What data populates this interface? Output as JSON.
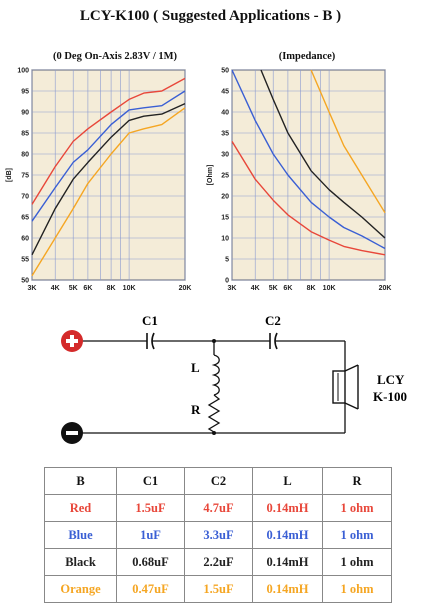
{
  "title": "LCY-K100 ( Suggested Applications - B )",
  "colors": {
    "red": "#e8473a",
    "blue": "#3a5fd4",
    "black": "#222222",
    "orange": "#f5a623",
    "grid_bg": "#f4ecd8",
    "grid_line": "#8a9ad0"
  },
  "chart_data": [
    {
      "type": "line",
      "title": "(0 Deg On-Axis 2.83V / 1M)",
      "xlabel": "",
      "ylabel": "[dB]",
      "xscale": "log",
      "xlim": [
        3000,
        20000
      ],
      "ylim": [
        50,
        100
      ],
      "x_ticks": [
        3000,
        4000,
        5000,
        6000,
        8000,
        10000,
        20000
      ],
      "x_tick_labels": [
        "3K",
        "4K",
        "5K",
        "6K",
        "8K",
        "10K",
        "20K"
      ],
      "y_ticks": [
        50,
        55,
        60,
        65,
        70,
        75,
        80,
        85,
        90,
        95,
        100
      ],
      "grid": true,
      "series": [
        {
          "color": "red",
          "x": [
            3000,
            4000,
            5000,
            6000,
            8000,
            10000,
            12000,
            15000,
            20000
          ],
          "y": [
            68,
            77,
            83,
            86,
            90,
            93,
            94.5,
            95,
            98
          ]
        },
        {
          "color": "blue",
          "x": [
            3000,
            4000,
            5000,
            6000,
            8000,
            10000,
            12000,
            15000,
            20000
          ],
          "y": [
            64,
            72,
            78,
            81,
            87,
            90.5,
            91,
            91.5,
            95
          ]
        },
        {
          "color": "black",
          "x": [
            3000,
            4000,
            5000,
            6000,
            8000,
            10000,
            12000,
            15000,
            20000
          ],
          "y": [
            56,
            67,
            74,
            78,
            84,
            88,
            89,
            89.5,
            92
          ]
        },
        {
          "color": "orange",
          "x": [
            3000,
            4000,
            5000,
            6000,
            8000,
            10000,
            12000,
            15000,
            20000
          ],
          "y": [
            51,
            60,
            67,
            73,
            80,
            85,
            86,
            87,
            91
          ]
        }
      ]
    },
    {
      "type": "line",
      "title": "(Impedance)",
      "xlabel": "",
      "ylabel": "[Ohm]",
      "xscale": "log",
      "xlim": [
        3000,
        20000
      ],
      "ylim": [
        0,
        50
      ],
      "x_ticks": [
        3000,
        4000,
        5000,
        6000,
        8000,
        10000,
        20000
      ],
      "x_tick_labels": [
        "3K",
        "4K",
        "5K",
        "6K",
        "8K",
        "10K",
        "20K"
      ],
      "y_ticks": [
        0,
        5,
        10,
        15,
        20,
        25,
        30,
        35,
        40,
        45,
        50
      ],
      "grid": true,
      "series": [
        {
          "color": "red",
          "x": [
            3000,
            4000,
            5000,
            6000,
            8000,
            10000,
            12000,
            15000,
            20000
          ],
          "y": [
            33,
            24,
            19,
            15.5,
            11.5,
            9.5,
            8,
            7,
            6
          ]
        },
        {
          "color": "blue",
          "x": [
            3000,
            4000,
            5000,
            6000,
            8000,
            10000,
            12000,
            15000,
            20000
          ],
          "y": [
            50,
            38,
            30,
            25,
            18.5,
            15,
            12.5,
            10.5,
            7.5
          ]
        },
        {
          "color": "black",
          "x": [
            4300,
            5000,
            6000,
            8000,
            10000,
            12000,
            15000,
            20000
          ],
          "y": [
            50,
            43,
            35,
            26,
            21.5,
            18.5,
            15,
            10
          ]
        },
        {
          "color": "orange",
          "x": [
            8000,
            10000,
            12000,
            15000,
            20000
          ],
          "y": [
            50,
            40,
            32,
            25,
            16
          ]
        }
      ]
    }
  ],
  "schematic": {
    "c1_label": "C1",
    "c2_label": "C2",
    "l_label": "L",
    "r_label": "R",
    "driver_label_line1": "LCY",
    "driver_label_line2": "K-100",
    "plus_symbol": "+",
    "minus_symbol": "−"
  },
  "table": {
    "headers": [
      "B",
      "C1",
      "C2",
      "L",
      "R"
    ],
    "rows": [
      {
        "color": "red",
        "cells": [
          "Red",
          "1.5uF",
          "4.7uF",
          "0.14mH",
          "1 ohm"
        ]
      },
      {
        "color": "blue",
        "cells": [
          "Blue",
          "1uF",
          "3.3uF",
          "0.14mH",
          "1 ohm"
        ]
      },
      {
        "color": "black",
        "cells": [
          "Black",
          "0.68uF",
          "2.2uF",
          "0.14mH",
          "1 ohm"
        ]
      },
      {
        "color": "orange",
        "cells": [
          "Orange",
          "0.47uF",
          "1.5uF",
          "0.14mH",
          "1 ohm"
        ]
      }
    ]
  }
}
